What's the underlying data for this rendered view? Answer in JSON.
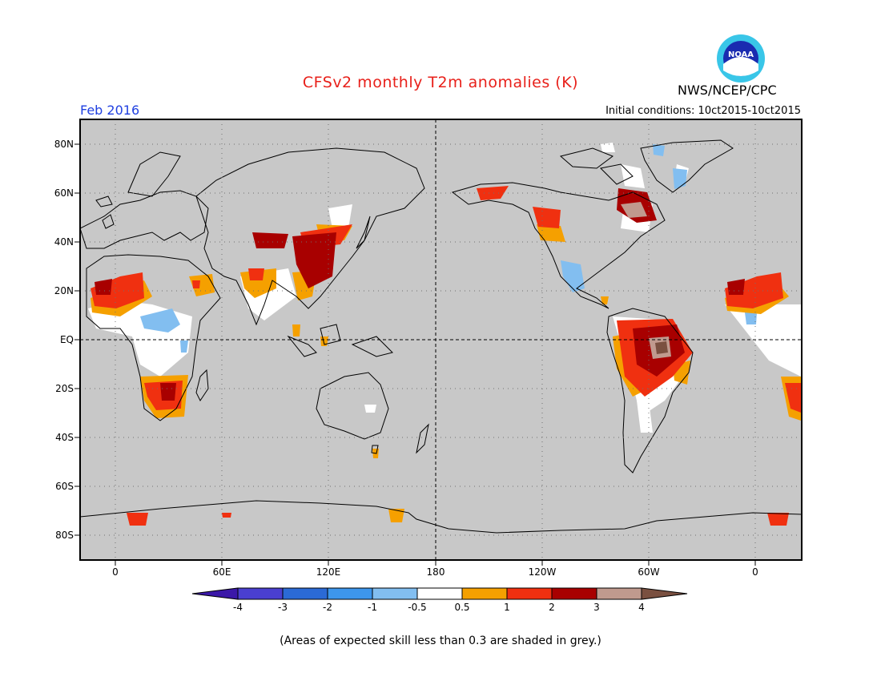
{
  "header": {
    "title": "CFSv2 monthly T2m anomalies (K)",
    "month": "Feb 2016",
    "initial_conditions": "Initial conditions: 10ct2015-10ct2015",
    "agency": "NWS/NCEP/CPC",
    "logo_text": "NOAA"
  },
  "map": {
    "lat_labels": [
      "80N",
      "60N",
      "40N",
      "20N",
      "EQ",
      "20S",
      "40S",
      "60S",
      "80S"
    ],
    "lon_labels": [
      "0",
      "60E",
      "120E",
      "180",
      "120W",
      "60W",
      "0"
    ],
    "background_color": "#c8c8c8",
    "grid": "dotted",
    "reference_lines": [
      "equator",
      "dateline"
    ]
  },
  "colorbar": {
    "tick_labels": [
      "-4",
      "-3",
      "-2",
      "-1",
      "-0.5",
      "0.5",
      "1",
      "2",
      "3",
      "4"
    ],
    "colors": [
      "#3b18a8",
      "#4a3fd0",
      "#2b6ad6",
      "#3d96ec",
      "#82bef0",
      "#ffffff",
      "#f5a000",
      "#f03010",
      "#a80000",
      "#c09a8e",
      "#7a5040"
    ]
  },
  "footnote": "(Areas of expected skill less than 0.3 are shaded in grey.)",
  "chart_data": {
    "type": "heatmap",
    "variable": "2m temperature anomaly (K)",
    "legend_bounds": [
      -4,
      -3,
      -2,
      -1,
      -0.5,
      0.5,
      1,
      2,
      3,
      4
    ],
    "regions": [
      {
        "region": "West Africa / Sahara",
        "class": "1 to 3"
      },
      {
        "region": "Southern Africa",
        "class": "1 to 3"
      },
      {
        "region": "Central Africa",
        "class": "-1 to -0.5"
      },
      {
        "region": "East and Central China",
        "class": "2 to 4"
      },
      {
        "region": "India",
        "class": "0.5 to 2"
      },
      {
        "region": "Alaska",
        "class": "2 to 3"
      },
      {
        "region": "Western Canada / US Northwest",
        "class": "0.5 to 2"
      },
      {
        "region": "Mexico",
        "class": "-1 to -0.5"
      },
      {
        "region": "Eastern Canada / Quebec",
        "class": "2 to 4"
      },
      {
        "region": "Greenland",
        "class": "-1 to -0.5"
      },
      {
        "region": "Amazon / Northern South America",
        "class": "1 to >4"
      },
      {
        "region": "Antarctica coast",
        "class": "1 to 2"
      }
    ]
  }
}
